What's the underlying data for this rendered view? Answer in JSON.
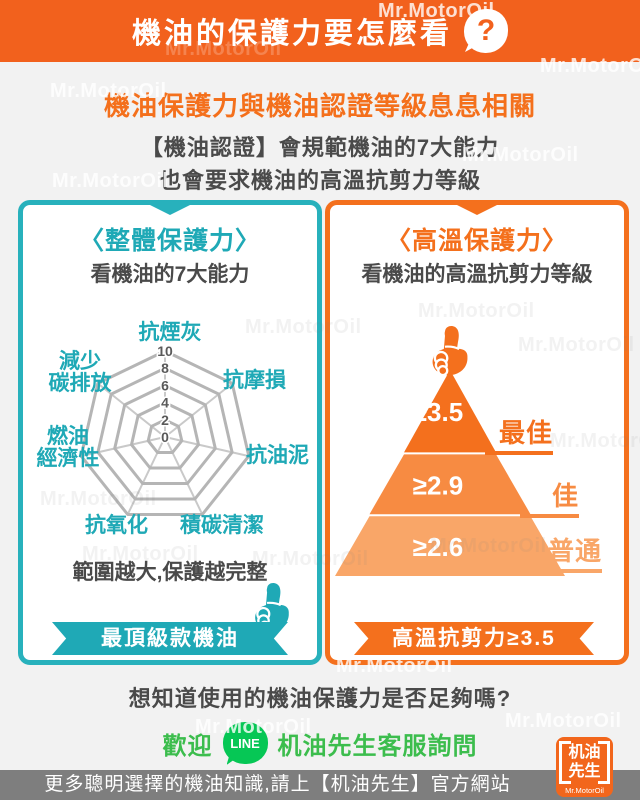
{
  "header": {
    "title": "機油的保護力要怎麼看",
    "help_glyph": "?"
  },
  "intro": {
    "headline": "機油保護力與機油認證等級息息相關",
    "line1": "【機油認證】會規範機油的7大能力",
    "line2": "也會要求機油的高溫抗剪力等級"
  },
  "left_panel": {
    "title": "〈整體保護力〉",
    "subtitle": "看機油的7大能力",
    "note": "範圍越大,保護越完整",
    "ribbon": "最頂級款機油",
    "accent_color": "#1FA9B6"
  },
  "right_panel": {
    "title": "〈高溫保護力〉",
    "subtitle": "看機油的高溫抗剪力等級",
    "ribbon": "高溫抗剪力≥3.5",
    "accent_color": "#F4701D"
  },
  "chart_data": [
    {
      "type": "radar",
      "panel": "整體保護力",
      "axes": [
        "抗煙灰",
        "抗摩損",
        "抗油泥",
        "積碳清潔",
        "抗氧化",
        "燃油\n經濟性",
        "減少\n碳排放"
      ],
      "scale_ticks": [
        10,
        8,
        6,
        4,
        2,
        0
      ],
      "max": 10,
      "rings": 5,
      "grid": true,
      "series": []
    },
    {
      "type": "pyramid",
      "panel": "高溫保護力",
      "levels": [
        {
          "value": "≥3.5",
          "label": "最佳",
          "color": "#F4701D"
        },
        {
          "value": "≥2.9",
          "label": "佳",
          "color": "#F78B42"
        },
        {
          "value": "≥2.6",
          "label": "普通",
          "color": "#F9A668"
        }
      ]
    }
  ],
  "cta": {
    "question": "想知道使用的機油保護力是否足夠嗎?",
    "welcome": "歡迎",
    "line_label": "LINE",
    "contact": "机油先生客服詢問"
  },
  "footer": {
    "text": "更多聰明選擇的機油知識,請上【机油先生】官方網站",
    "logo": {
      "line1": "机油",
      "line2": "先生",
      "sub": "Mr.MotorOil"
    }
  },
  "watermark": "Mr.MotorOil",
  "colors": {
    "orange": "#F2611D",
    "teal": "#28B1BC",
    "line_green": "#06C755",
    "text_green": "#3CBD4D",
    "footer_gray": "#7E7E7E"
  }
}
